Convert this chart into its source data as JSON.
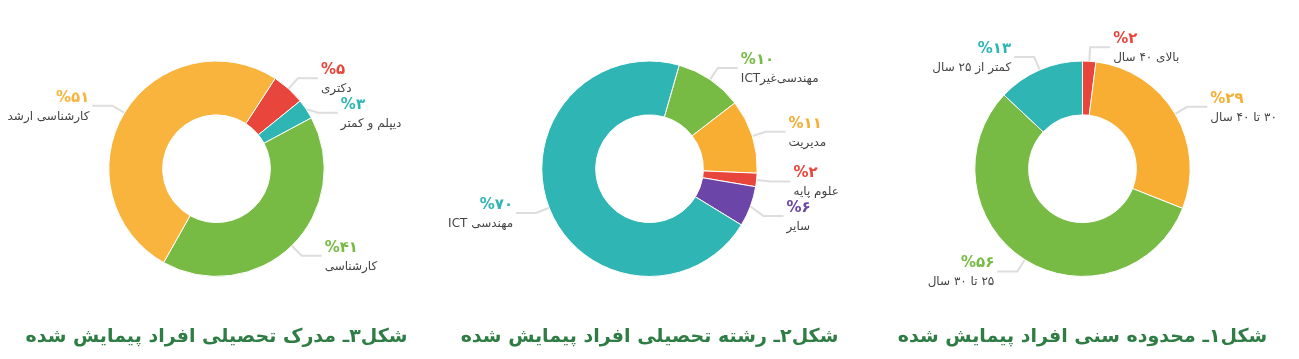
{
  "chart_data": [
    {
      "type": "donut",
      "title": "شکل۱ـ محدوده سنی افراد پیمایش شده",
      "categories": [
        "بالای ۴۰ سال",
        "۳۰ تا ۴۰ سال",
        "۲۵ تا ۳۰ سال",
        "کمتر از ۲۵ سال"
      ],
      "values": [
        2,
        29,
        56,
        13
      ],
      "colors": [
        "#e8453c",
        "#f8ad33",
        "#77bb45",
        "#2fb5b4"
      ],
      "value_labels": [
        "%۲",
        "%۲۹",
        "%۵۶",
        "%۱۳"
      ],
      "legend": false
    },
    {
      "type": "donut",
      "title": "شکل۲ـ رشته تحصیلی افراد پیمایش شده",
      "categories": [
        "مهندسی‌غیرICT",
        "مدیریت",
        "علوم پایه",
        "سایر",
        "مهندسی ICT"
      ],
      "values": [
        10,
        11,
        2,
        6,
        70
      ],
      "colors": [
        "#77bb45",
        "#f8ad33",
        "#e8453c",
        "#6b46a8",
        "#2fb5b4"
      ],
      "value_labels": [
        "%۱۰",
        "%۱۱",
        "%۲",
        "%۶",
        "%۷۰"
      ],
      "legend": false
    },
    {
      "type": "donut",
      "title": "شکل۳ـ مدرک تحصیلی افراد پیمایش شده",
      "categories": [
        "دکتری",
        "دیپلم و کمتر",
        "کارشناسی",
        "کارشناسی ارشد"
      ],
      "values": [
        5,
        3,
        41,
        51
      ],
      "colors": [
        "#e8453c",
        "#2fb5b4",
        "#77bb45",
        "#f8b43d"
      ],
      "value_labels": [
        "%۵",
        "%۳",
        "%۴۱",
        "%۵۱"
      ],
      "legend": false
    }
  ]
}
